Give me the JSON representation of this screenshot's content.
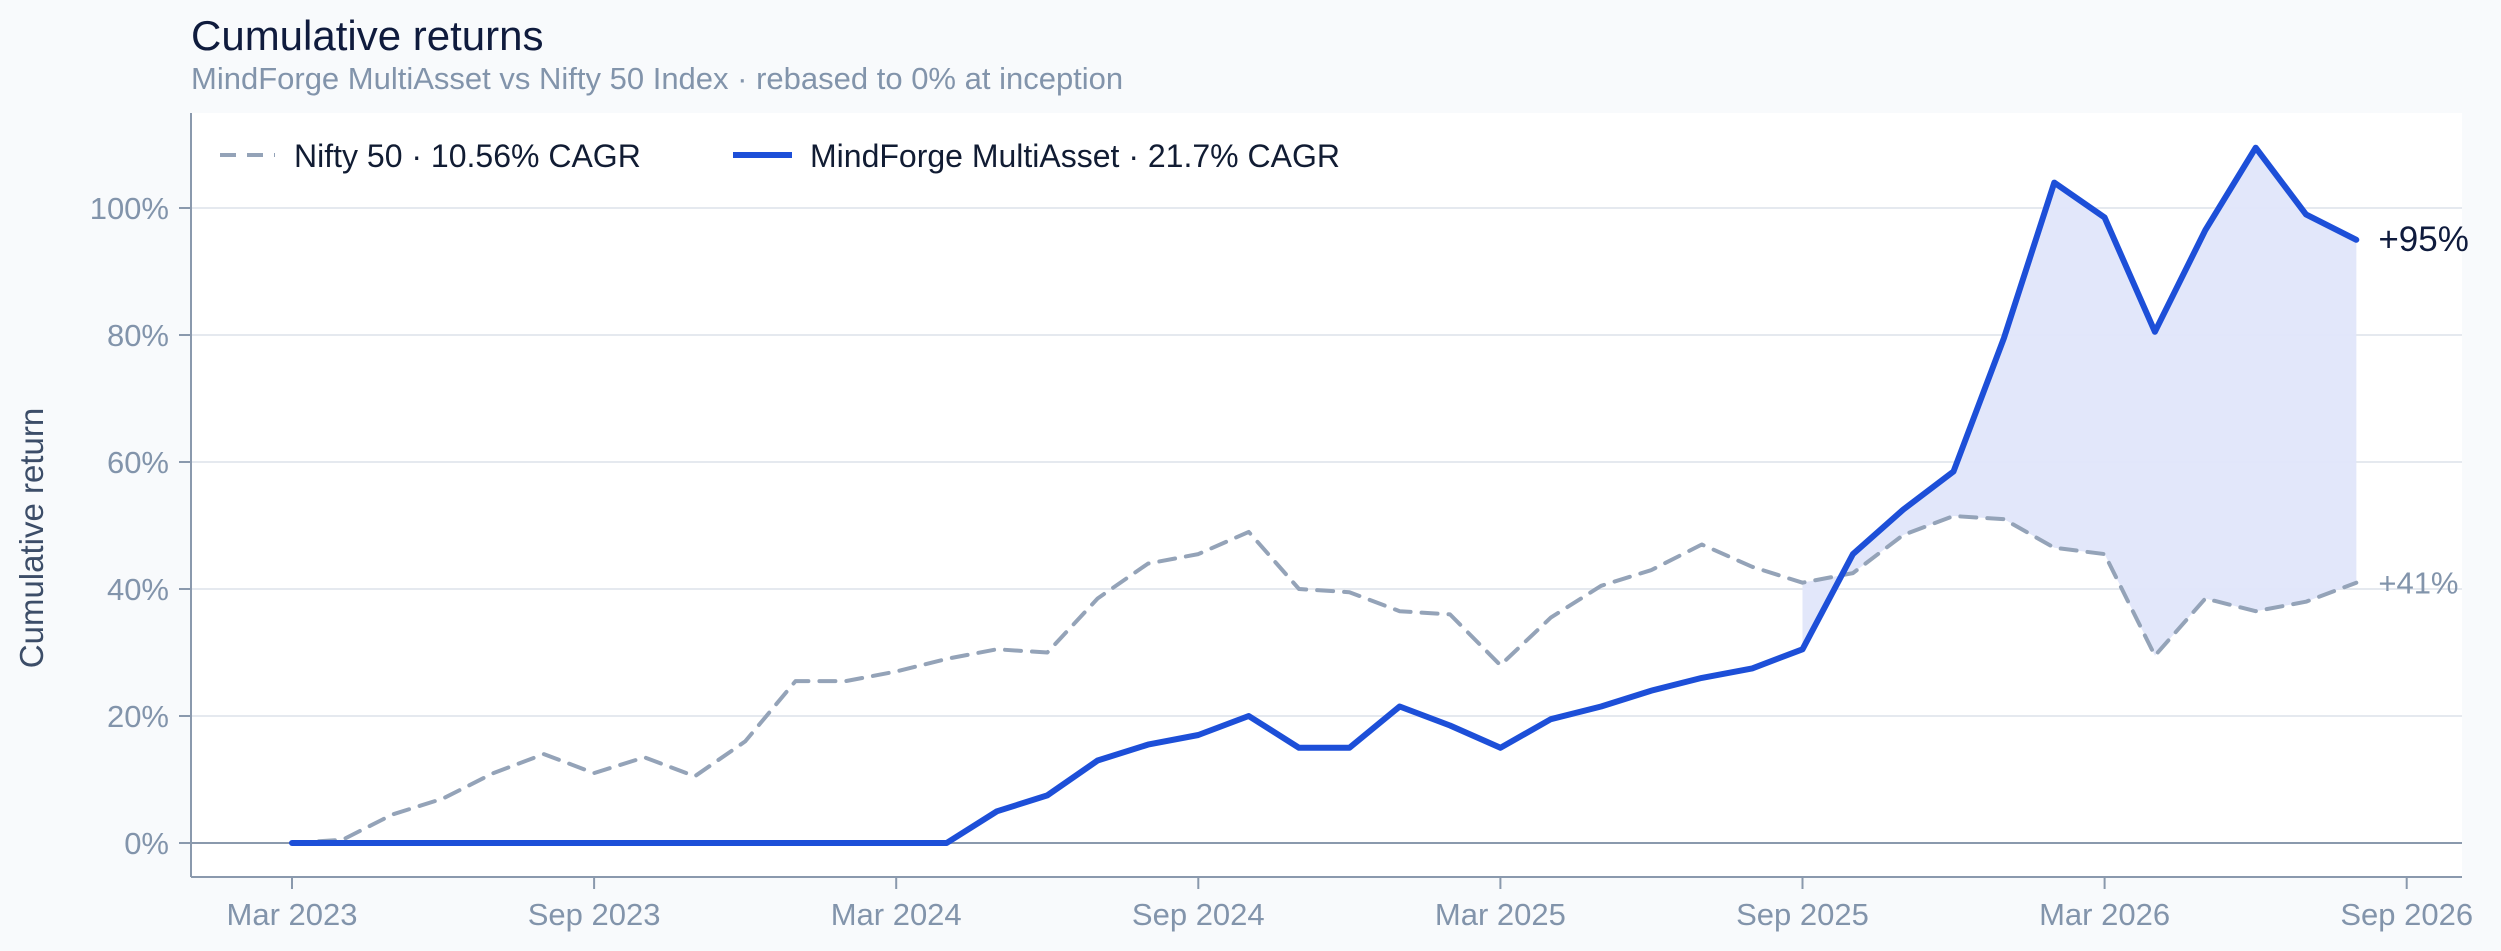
{
  "chart_data": {
    "type": "line",
    "title": "Cumulative returns",
    "subtitle": "MindForge MultiAsset vs Nifty 50 Index · rebased to 0% at inception",
    "xlabel": "",
    "ylabel": "Cumulative return",
    "x_ticks": [
      "Mar 2023",
      "Sep 2023",
      "Mar 2024",
      "Sep 2024",
      "Mar 2025",
      "Sep 2025",
      "Mar 2026",
      "Sep 2026"
    ],
    "y_ticks": [
      "0%",
      "20%",
      "40%",
      "60%",
      "80%",
      "100%"
    ],
    "ylim": [
      -5,
      110
    ],
    "grid": "horizontal",
    "legend_position": "top-left",
    "x": [
      "2023-03",
      "2023-04",
      "2023-05",
      "2023-06",
      "2023-07",
      "2023-08",
      "2023-09",
      "2023-10",
      "2023-11",
      "2023-12",
      "2024-01",
      "2024-02",
      "2024-03",
      "2024-04",
      "2024-05",
      "2024-06",
      "2024-07",
      "2024-08",
      "2024-09",
      "2024-10",
      "2024-11",
      "2024-12",
      "2025-01",
      "2025-02",
      "2025-03",
      "2025-04",
      "2025-05",
      "2025-06",
      "2025-07",
      "2025-08",
      "2025-09",
      "2025-10",
      "2025-11",
      "2025-12",
      "2026-01",
      "2026-02",
      "2026-03",
      "2026-04",
      "2026-05",
      "2026-06",
      "2026-07",
      "2026-08"
    ],
    "series": [
      {
        "name": "Nifty 50",
        "legend": "Nifty 50 · 10.56% CAGR",
        "color": "#94a3b8",
        "style": "dashed",
        "end_label": "+41%",
        "values": [
          0,
          0.5,
          4.5,
          7,
          11,
          14,
          11,
          13.5,
          10.5,
          16,
          25.5,
          25.5,
          27,
          29,
          30.5,
          30,
          38.5,
          44,
          45.5,
          49,
          40,
          39.5,
          36.5,
          36,
          28,
          35.5,
          40.5,
          43,
          47,
          43.5,
          41,
          42.5,
          48.5,
          51.5,
          51,
          46.5,
          45.5,
          29.5,
          38.5,
          36.5,
          38,
          41
        ]
      },
      {
        "name": "MindForge MultiAsset",
        "legend": "MindForge MultiAsset · 21.7% CAGR",
        "color": "#1d4fd8",
        "style": "solid",
        "end_label": "+95%",
        "values": [
          0,
          0,
          0,
          0,
          0,
          0,
          0,
          0,
          0,
          0,
          0,
          0,
          0,
          0,
          5,
          7.5,
          13,
          15.5,
          17,
          20,
          15,
          15,
          21.5,
          18.5,
          15,
          19.5,
          21.5,
          24,
          26,
          27.5,
          30.5,
          45.5,
          52.5,
          58.5,
          79.5,
          104,
          98.5,
          80.5,
          96.5,
          109.5,
          99,
          95
        ]
      }
    ],
    "fill_between": {
      "color": "#e0e6fa",
      "from": "2025-09",
      "to": "2026-08"
    }
  }
}
